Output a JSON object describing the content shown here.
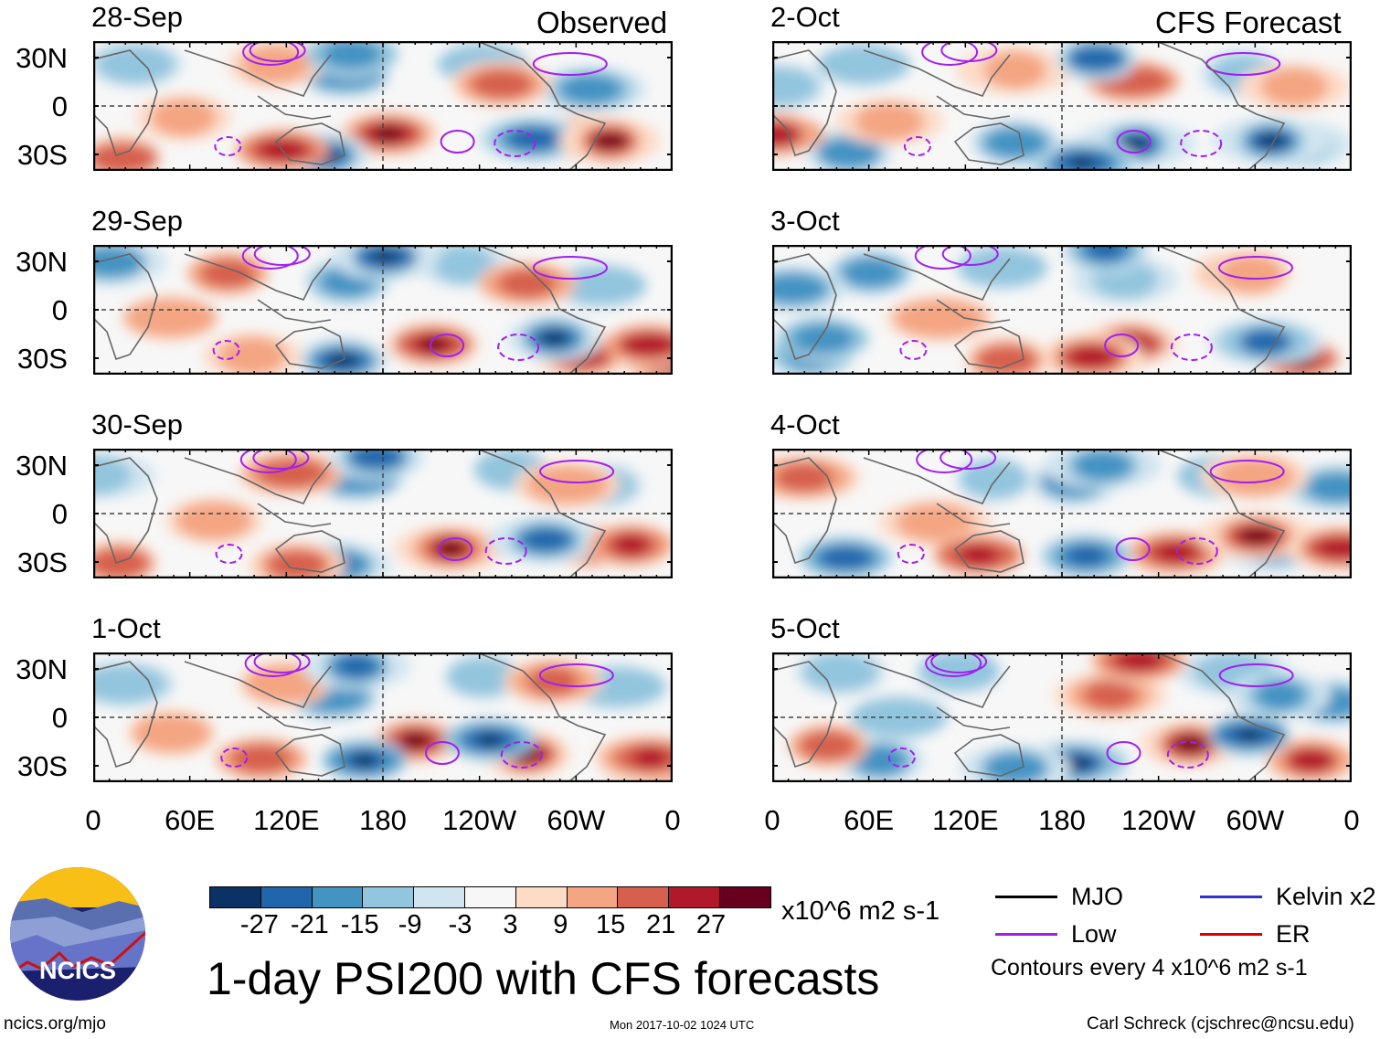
{
  "columns": {
    "left_title": "Observed",
    "right_title": "CFS Forecast"
  },
  "chart_data": [
    {
      "type": "heatmap",
      "title": "28-Sep",
      "group": "Observed"
    },
    {
      "type": "heatmap",
      "title": "29-Sep",
      "group": "Observed"
    },
    {
      "type": "heatmap",
      "title": "30-Sep",
      "group": "Observed"
    },
    {
      "type": "heatmap",
      "title": "1-Oct",
      "group": "Observed"
    },
    {
      "type": "heatmap",
      "title": "2-Oct",
      "group": "CFS Forecast"
    },
    {
      "type": "heatmap",
      "title": "3-Oct",
      "group": "CFS Forecast"
    },
    {
      "type": "heatmap",
      "title": "4-Oct",
      "group": "CFS Forecast"
    },
    {
      "type": "heatmap",
      "title": "5-Oct",
      "group": "CFS Forecast"
    }
  ],
  "axes": {
    "y_ticks": [
      "30N",
      "0",
      "30S"
    ],
    "x_ticks": [
      "0",
      "60E",
      "120E",
      "180",
      "120W",
      "60W",
      "0"
    ]
  },
  "colorbar": {
    "colors": [
      "#0b3265",
      "#2166ac",
      "#4393c3",
      "#92c5de",
      "#d1e5f0",
      "#f7f7f7",
      "#fddbc7",
      "#f4a582",
      "#d6604d",
      "#b2182b",
      "#67001f"
    ],
    "labels": [
      "-27",
      "-21",
      "-15",
      "-9",
      "-3",
      "3",
      "9",
      "15",
      "21",
      "27"
    ],
    "units": "x10^6 m2 s-1"
  },
  "title": "1-day PSI200 with CFS forecasts",
  "legend": {
    "items": [
      {
        "label": "MJO",
        "color": "#000000"
      },
      {
        "label": "Kelvin x2",
        "color": "#3333cc"
      },
      {
        "label": "Low",
        "color": "#a020f0"
      },
      {
        "label": "ER",
        "color": "#e00000"
      }
    ],
    "note": "Contours every 4 x10^6 m2 s-1"
  },
  "logo": {
    "text": "NCICS"
  },
  "footer": {
    "left": "ncics.org/mjo",
    "center": "Mon 2017-10-02 1024 UTC",
    "right": "Carl Schreck (cjschrec@ncsu.edu)"
  }
}
